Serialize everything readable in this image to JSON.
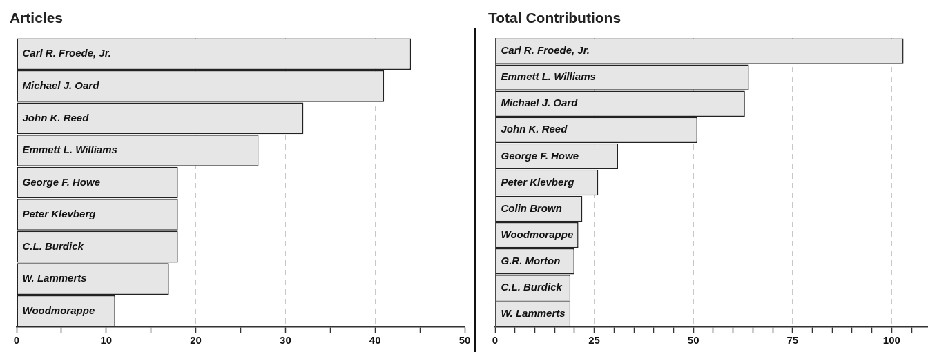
{
  "chart_data": [
    {
      "type": "bar",
      "title": "Articles",
      "orientation": "horizontal",
      "categories": [
        "Carl R. Froede, Jr.",
        "Michael J. Oard",
        "John K. Reed",
        "Emmett L. Williams",
        "George F. Howe",
        "Peter Klevberg",
        "C.L. Burdick",
        "W. Lammerts",
        "Woodmorappe"
      ],
      "values": [
        44,
        41,
        32,
        27,
        18,
        18,
        18,
        17,
        11
      ],
      "color": "#e6e6e6",
      "xlim": [
        0,
        50
      ],
      "xticks": [
        0,
        {
          "value": 5,
          "label": null
        },
        10,
        {
          "value": 15,
          "label": null
        },
        20,
        {
          "value": 25,
          "label": null
        },
        30,
        {
          "value": 35,
          "label": null
        },
        40,
        {
          "value": 45,
          "label": null
        },
        50
      ],
      "grid": "x"
    },
    {
      "type": "bar",
      "title": "Total Contributions",
      "orientation": "horizontal",
      "categories": [
        "Carl R. Froede, Jr.",
        "Emmett L. Williams",
        "Michael J. Oard",
        "John K. Reed",
        "George F. Howe",
        "Peter Klevberg",
        "Colin Brown",
        "Woodmorappe",
        "G.R. Morton",
        "C.L. Burdick",
        "W. Lammerts"
      ],
      "values": [
        103,
        64,
        63,
        51,
        31,
        26,
        22,
        21,
        20,
        19,
        19
      ],
      "color": "#e6e6e6",
      "xlim": [
        0,
        109
      ],
      "xticks": [
        0,
        {
          "value": 5,
          "label": null
        },
        {
          "value": 10,
          "label": null
        },
        {
          "value": 15,
          "label": null
        },
        {
          "value": 20,
          "label": null
        },
        25,
        {
          "value": 30,
          "label": null
        },
        {
          "value": 35,
          "label": null
        },
        {
          "value": 40,
          "label": null
        },
        {
          "value": 45,
          "label": null
        },
        50,
        {
          "value": 55,
          "label": null
        },
        {
          "value": 60,
          "label": null
        },
        {
          "value": 65,
          "label": null
        },
        {
          "value": 70,
          "label": null
        },
        75,
        {
          "value": 80,
          "label": null
        },
        {
          "value": 85,
          "label": null
        },
        {
          "value": 90,
          "label": null
        },
        {
          "value": 95,
          "label": null
        },
        100,
        {
          "value": 105,
          "label": null
        }
      ],
      "grid": "x"
    }
  ]
}
